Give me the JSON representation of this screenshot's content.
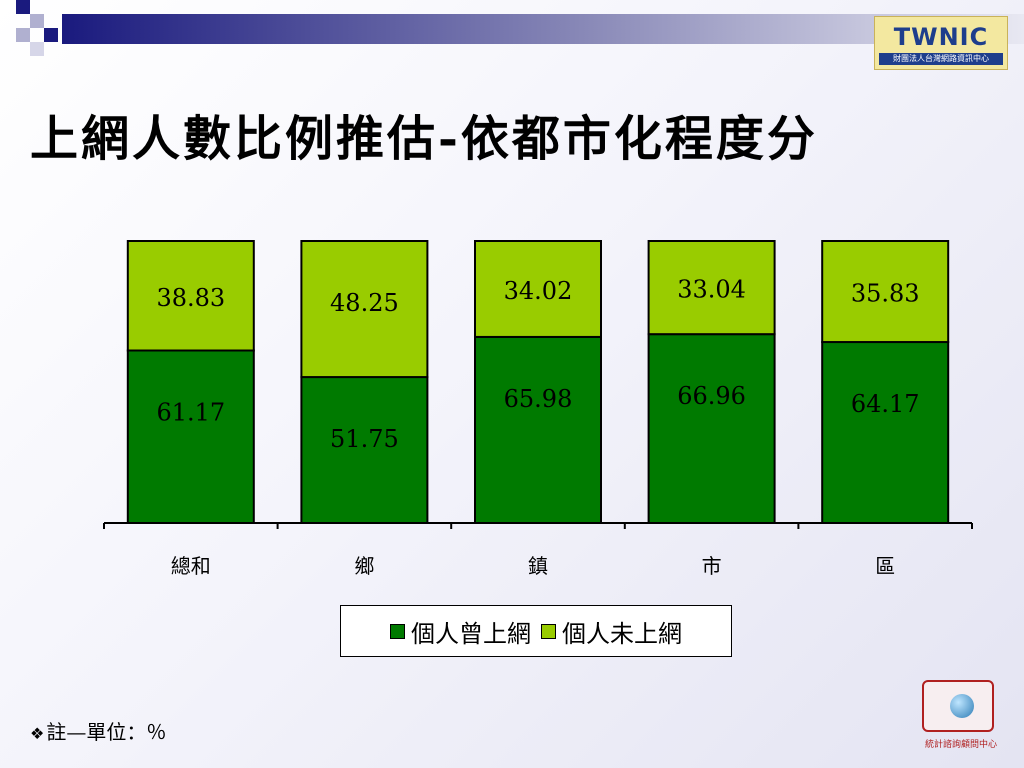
{
  "slide": {
    "title": "上網人數比例推估-依都市化程度分",
    "footnote_bullet": "❖",
    "footnote": "註—單位：％"
  },
  "logos": {
    "top_right_text": "TWNIC",
    "top_right_subtext": "財團法人台灣網路資訊中心",
    "bottom_right_subtext": "統計諮詢顧問中心"
  },
  "colors": {
    "series_used": "#007a00",
    "series_not_used": "#99cc00",
    "accent_navy": "#1a1a7e"
  },
  "chart_data": {
    "type": "bar",
    "stacked": true,
    "categories": [
      "總和",
      "鄉",
      "鎮",
      "市",
      "區"
    ],
    "series": [
      {
        "name": "個人曾上網",
        "values": [
          61.17,
          51.75,
          65.98,
          66.96,
          64.17
        ],
        "color": "#007a00"
      },
      {
        "name": "個人未上網",
        "values": [
          38.83,
          48.25,
          34.02,
          33.04,
          35.83
        ],
        "color": "#99cc00"
      }
    ],
    "ylim": [
      0,
      100
    ],
    "grid": false,
    "legend_position": "bottom",
    "title": "",
    "xlabel": "",
    "ylabel": ""
  }
}
